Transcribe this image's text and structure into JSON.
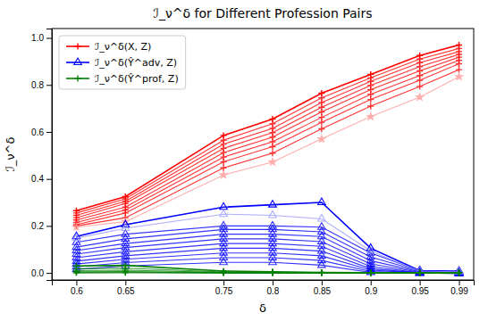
{
  "chart_data": {
    "type": "line",
    "title": "ℐ_ν^δ for Different Profession Pairs",
    "x_label": "δ",
    "y_label": "ℐ_ν^δ",
    "x": [
      0.6,
      0.65,
      0.75,
      0.8,
      0.85,
      0.9,
      0.95,
      0.99
    ],
    "xlim": [
      0.575,
      1.005
    ],
    "xticks": [
      0.6,
      0.65,
      0.75,
      0.8,
      0.85,
      0.9,
      0.95,
      0.99
    ],
    "ylim": [
      -0.03,
      1.04
    ],
    "yticks": [
      {
        "value": 0,
        "label": "0.0"
      },
      0.2,
      0.4,
      0.6,
      0.8,
      {
        "value": 1,
        "label": "1.0"
      }
    ],
    "grid": false,
    "legend": "upper left",
    "series": [
      {
        "name": "ℐ_ν^δ(X, Z)",
        "color": "#FF0000",
        "marker": "plus",
        "values": [
          0.265,
          0.325,
          0.585,
          0.655,
          0.765,
          0.845,
          0.925,
          0.97
        ]
      },
      {
        "color": "#FF0000",
        "marker": "plus",
        "values": [
          0.255,
          0.315,
          0.565,
          0.635,
          0.745,
          0.83,
          0.91,
          0.955
        ]
      },
      {
        "color": "#FF0000",
        "marker": "plus",
        "values": [
          0.245,
          0.305,
          0.548,
          0.615,
          0.725,
          0.815,
          0.895,
          0.942
        ]
      },
      {
        "color": "#FF0000",
        "marker": "plus",
        "values": [
          0.235,
          0.295,
          0.53,
          0.597,
          0.705,
          0.798,
          0.878,
          0.93
        ]
      },
      {
        "color": "#FF0000",
        "marker": "plus",
        "values": [
          0.225,
          0.28,
          0.512,
          0.578,
          0.685,
          0.78,
          0.86,
          0.918
        ]
      },
      {
        "color": "#FF0000",
        "marker": "plus",
        "values": [
          0.215,
          0.268,
          0.493,
          0.558,
          0.662,
          0.76,
          0.84,
          0.905
        ]
      },
      {
        "color": "#FF0000",
        "marker": "plus",
        "values": [
          0.205,
          0.255,
          0.473,
          0.537,
          0.641,
          0.738,
          0.82,
          0.89
        ]
      },
      {
        "color": "#FF0000",
        "marker": "plus",
        "values": [
          0.2,
          0.235,
          0.447,
          0.51,
          0.613,
          0.71,
          0.793,
          0.865
        ]
      },
      {
        "color": "#FF9999",
        "marker": "star",
        "values": [
          0.195,
          0.218,
          0.417,
          0.472,
          0.57,
          0.665,
          0.748,
          0.835
        ]
      },
      {
        "name": "ℐ_ν^δ(Ŷ^adv, Z)",
        "color": "#0000FF",
        "marker": "triangle",
        "values": [
          0.155,
          0.205,
          0.28,
          0.29,
          0.3,
          0.105,
          0.01,
          0.008
        ]
      },
      {
        "color": "#0000FF",
        "marker": "triangle",
        "values": [
          0.13,
          0.165,
          0.2,
          0.2,
          0.195,
          0.085,
          0.01,
          0.003
        ]
      },
      {
        "color": "#0000FF",
        "marker": "triangle",
        "values": [
          0.11,
          0.145,
          0.185,
          0.185,
          0.175,
          0.068,
          0.008,
          0.002
        ]
      },
      {
        "color": "#0000FF",
        "marker": "triangle",
        "values": [
          0.095,
          0.125,
          0.165,
          0.165,
          0.155,
          0.052,
          0.005,
          0.001
        ]
      },
      {
        "color": "#0000FF",
        "marker": "triangle",
        "values": [
          0.08,
          0.108,
          0.145,
          0.145,
          0.133,
          0.038,
          0.003,
          0.0
        ]
      },
      {
        "color": "#0000FF",
        "marker": "triangle",
        "values": [
          0.065,
          0.09,
          0.125,
          0.125,
          0.113,
          0.027,
          0.001,
          0.0
        ]
      },
      {
        "color": "#0000FF",
        "marker": "triangle",
        "values": [
          0.05,
          0.073,
          0.105,
          0.105,
          0.093,
          0.018,
          0.0,
          0.0
        ]
      },
      {
        "color": "#0000FF",
        "marker": "triangle",
        "values": [
          0.038,
          0.058,
          0.085,
          0.085,
          0.073,
          0.012,
          0.0,
          0.0
        ]
      },
      {
        "color": "#0000FF",
        "marker": "triangle",
        "values": [
          0.026,
          0.044,
          0.065,
          0.065,
          0.053,
          0.006,
          0.0,
          -0.002
        ]
      },
      {
        "color": "#0000FF",
        "marker": "triangle",
        "values": [
          0.015,
          0.03,
          0.045,
          0.045,
          0.033,
          0.002,
          0.0,
          -0.003
        ]
      },
      {
        "color": "#9999FF",
        "marker": "triangle",
        "values": [
          0.148,
          0.19,
          0.25,
          0.245,
          0.23,
          0.093,
          0.008,
          0.005
        ]
      },
      {
        "name": "ℐ_ν^δ(Ŷ^prof, Z)",
        "color": "#008000",
        "marker": "plus",
        "values": [
          0.03,
          0.032,
          0.008,
          0.005,
          0.002,
          0.001,
          0.0,
          0.0
        ]
      },
      {
        "color": "#008000",
        "marker": "plus",
        "values": [
          0.018,
          0.02,
          0.004,
          0.003,
          0.001,
          0.0,
          0.0,
          0.0
        ]
      },
      {
        "color": "#008000",
        "marker": "plus",
        "values": [
          0.01,
          0.012,
          0.002,
          0.001,
          0.0,
          0.0,
          0.0,
          0.0
        ]
      },
      {
        "color": "#008000",
        "marker": "plus",
        "values": [
          0.005,
          0.006,
          0.001,
          0.0,
          0.0,
          0.0,
          0.0,
          0.0
        ]
      },
      {
        "color": "#008000",
        "marker": "plus",
        "values": [
          0.002,
          0.003,
          0.0,
          0.0,
          0.0,
          0.0,
          0.0,
          0.0
        ]
      },
      {
        "color": "#008000",
        "marker": "plus",
        "values": [
          0.0,
          0.001,
          0.0,
          0.0,
          0.0,
          0.0,
          0.0,
          0.0
        ]
      }
    ]
  }
}
